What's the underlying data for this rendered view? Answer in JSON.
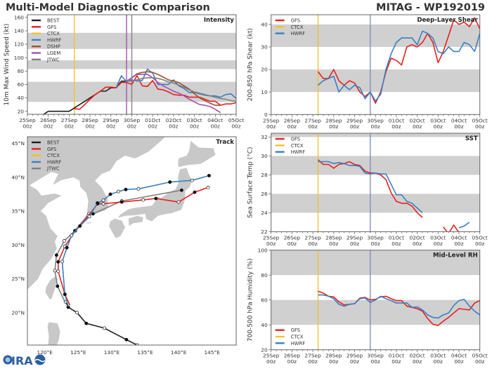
{
  "header": {
    "title": "Multi-Model Diagnostic Comparison",
    "storm": "MITAG - WP192019"
  },
  "logo": {
    "text": "CIRA"
  },
  "colors": {
    "BEST": "#1e1e1e",
    "GFS": "#e8201f",
    "CTCX": "#f2c12e",
    "HWRF": "#3a80c2",
    "DSHP": "#a0522d",
    "LGEM": "#a24fb4",
    "JTWC": "#7f7f7f",
    "MARKER": "#7e8fbf",
    "band": "#d0d0d0",
    "land": "#c8c8c8"
  },
  "chart_data": [
    {
      "id": "intensity",
      "type": "line",
      "title": "Intensity",
      "ylabel": "10m Max Wind Speed (kt)",
      "ylim": [
        15.5,
        164
      ],
      "y_ticks": [
        20,
        40,
        60,
        80,
        100,
        120,
        140,
        160
      ],
      "xlim": [
        "25Sep 00z",
        "05Oct 00z"
      ],
      "x_ticks": [
        "25Sep 00z",
        "26Sep 00z",
        "27Sep 00z",
        "28Sep 00z",
        "29Sep 00z",
        "30Sep 00z",
        "01Oct 00z",
        "02Oct 00z",
        "03Oct 00z",
        "04Oct 00z",
        "05Oct 00z"
      ],
      "bands": [
        [
          34,
          64
        ],
        [
          83,
          96
        ],
        [
          113,
          137
        ]
      ],
      "legend": [
        "BEST",
        "GFS",
        "CTCX",
        "HWRF",
        "DSHP",
        "LGEM",
        "JTWC"
      ],
      "legend_position": "top-left",
      "vlines": [
        {
          "model": "CTCX",
          "time": "27Sep 06z"
        },
        {
          "model": "LGEM",
          "time": "29Sep 18z"
        },
        {
          "model": "JTWC",
          "time": "30Sep 00z"
        }
      ],
      "series": [
        {
          "name": "BEST",
          "start": "25Sep 18z",
          "interval_hours": 6,
          "values": [
            15,
            20,
            20,
            20,
            20,
            20,
            25,
            30,
            35,
            40,
            45,
            50,
            50,
            55,
            55,
            65,
            65
          ]
        },
        {
          "name": "GFS",
          "start": "27Sep 06z",
          "interval_hours": 6,
          "values": [
            24,
            23,
            30,
            38,
            45,
            50,
            56,
            56,
            55,
            63,
            63,
            60,
            73,
            58,
            57,
            66,
            53,
            52,
            49,
            45,
            44,
            44,
            41,
            41,
            41,
            38,
            35,
            35,
            29,
            31,
            31,
            33
          ]
        },
        {
          "name": "HWRF",
          "start": "29Sep 06z",
          "interval_hours": 6,
          "values": [
            55,
            73,
            64,
            67,
            65,
            66,
            83,
            77,
            60,
            60,
            60,
            67,
            58,
            54,
            48,
            48,
            46,
            44,
            43,
            43,
            41,
            45,
            46,
            39
          ]
        },
        {
          "name": "DSHP",
          "start": "29Sep 18z",
          "interval_hours": 6,
          "values": [
            65,
            70,
            76,
            78,
            79,
            78,
            75,
            71,
            67,
            65,
            63,
            58,
            53,
            46,
            40,
            36,
            32,
            29,
            29
          ]
        },
        {
          "name": "LGEM",
          "start": "29Sep 18z",
          "interval_hours": 6,
          "values": [
            64,
            70,
            75,
            75,
            75,
            70,
            63,
            58,
            54,
            50,
            47,
            43,
            38,
            34,
            30,
            29,
            27,
            23,
            18
          ]
        },
        {
          "name": "JTWC",
          "start": "29Sep 18z",
          "interval_hours": 6,
          "values": [
            65,
            65,
            67,
            69,
            70,
            70,
            69,
            67,
            64,
            62,
            59,
            56,
            52,
            49,
            47,
            45,
            43,
            41,
            39,
            38,
            36,
            35
          ]
        }
      ]
    },
    {
      "id": "shear",
      "type": "line",
      "title": "Deep-Layer Shear",
      "ylabel": "200-850 hPa Shear (kt)",
      "ylim": [
        0,
        44.3
      ],
      "y_ticks": [
        0,
        10,
        20,
        30,
        40
      ],
      "xlim": [
        "25Sep 00z",
        "05Oct 00z"
      ],
      "x_ticks": [
        "25Sep 00z",
        "26Sep 00z",
        "27Sep 00z",
        "28Sep 00z",
        "29Sep 00z",
        "30Sep 00z",
        "01Oct 00z",
        "02Oct 00z",
        "03Oct 00z",
        "04Oct 00z",
        "05Oct 00z"
      ],
      "bands": [
        [
          10,
          20
        ],
        [
          30,
          40
        ]
      ],
      "legend": [
        "GFS",
        "CTCX",
        "HWRF"
      ],
      "legend_position": "top-left",
      "vlines": [
        {
          "model": "CTCX",
          "time": "27Sep 06z"
        },
        {
          "model": "MARKER",
          "time": "29Sep 18z"
        }
      ],
      "series": [
        {
          "name": "GFS",
          "start": "27Sep 06z",
          "interval_hours": 6,
          "values": [
            19,
            16,
            16,
            20,
            15,
            13,
            15,
            14,
            10,
            8,
            10,
            5,
            10,
            19,
            25,
            24,
            22,
            30,
            31,
            30,
            32,
            36,
            32,
            23,
            28,
            35,
            42,
            40,
            41,
            39,
            43,
            38
          ]
        },
        {
          "name": "HWRF",
          "start": "27Sep 06z",
          "interval_hours": 6,
          "values": [
            13,
            15,
            16,
            17,
            10,
            13,
            11,
            13,
            12,
            7,
            10,
            6,
            9,
            20,
            27,
            32,
            34,
            34,
            34,
            31,
            37,
            36,
            34,
            28,
            27,
            30,
            28,
            28,
            32,
            31,
            28,
            36
          ]
        }
      ]
    },
    {
      "id": "sst",
      "type": "line",
      "title": "SST",
      "ylabel": "Sea Surface Temp (°C)",
      "ylim": [
        22,
        32.4
      ],
      "y_ticks": [
        22,
        24,
        26,
        28,
        30,
        32
      ],
      "xlim": [
        "25Sep 00z",
        "05Oct 00z"
      ],
      "x_ticks": [
        "25Sep 00z",
        "26Sep 00z",
        "27Sep 00z",
        "28Sep 00z",
        "29Sep 00z",
        "30Sep 00z",
        "01Oct 00z",
        "02Oct 00z",
        "03Oct 00z",
        "04Oct 00z",
        "05Oct 00z"
      ],
      "bands": [
        [
          24,
          26
        ],
        [
          28,
          30
        ],
        [
          32,
          34
        ]
      ],
      "legend": [
        "GFS",
        "CTCX",
        "HWRF"
      ],
      "legend_position": "top-left",
      "vlines": [
        {
          "model": "CTCX",
          "time": "27Sep 06z"
        },
        {
          "model": "MARKER",
          "time": "29Sep 18z"
        }
      ],
      "series": [
        {
          "name": "GFS",
          "start": "27Sep 06z",
          "interval_hours": 6,
          "values": [
            29.6,
            29.1,
            29.1,
            28.7,
            29.1,
            29.2,
            29.4,
            29.1,
            29.0,
            28.4,
            28.2,
            28.2,
            28.0,
            27.5,
            26.1,
            25.2,
            25.0,
            25.0,
            24.7,
            24.0,
            23.5,
            null,
            null,
            null,
            22.5,
            21.8,
            22.7,
            21.9
          ]
        },
        {
          "name": "HWRF",
          "start": "27Sep 06z",
          "interval_hours": 6,
          "values": [
            29.4,
            29.4,
            29.4,
            29.2,
            29.3,
            29.2,
            29.0,
            29.0,
            28.9,
            28.2,
            28.1,
            28.2,
            28.1,
            28.1,
            27.0,
            25.9,
            25.9,
            25.2,
            25.0,
            24.5,
            24.0,
            null,
            null,
            null,
            null,
            null,
            null,
            22.4,
            22.6,
            23.0
          ]
        }
      ]
    },
    {
      "id": "rh",
      "type": "line",
      "title": "Mid-Level RH",
      "ylabel": "700-500 hPa Humidity (%)",
      "ylim": [
        20,
        100
      ],
      "y_ticks": [
        20,
        40,
        60,
        80,
        100
      ],
      "xlim": [
        "25Sep 00z",
        "05Oct 00z"
      ],
      "x_ticks": [
        "25Sep 00z",
        "26Sep 00z",
        "27Sep 00z",
        "28Sep 00z",
        "29Sep 00z",
        "30Sep 00z",
        "01Oct 00z",
        "02Oct 00z",
        "03Oct 00z",
        "04Oct 00z",
        "05Oct 00z"
      ],
      "bands": [
        [
          40,
          60
        ],
        [
          80,
          100
        ]
      ],
      "legend": [
        "GFS",
        "CTCX",
        "HWRF"
      ],
      "legend_position": "bottom-left",
      "vlines": [
        {
          "model": "CTCX",
          "time": "27Sep 06z"
        },
        {
          "model": "MARKER",
          "time": "29Sep 18z"
        }
      ],
      "series": [
        {
          "name": "GFS",
          "start": "27Sep 06z",
          "interval_hours": 6,
          "values": [
            67,
            65.5,
            63,
            62.5,
            58.5,
            56,
            56.5,
            57,
            61.5,
            62,
            60,
            60.5,
            62.5,
            63,
            61,
            59.5,
            59.5,
            55,
            54,
            53,
            51,
            45,
            40.5,
            39.5,
            43,
            46,
            49.5,
            53,
            52.5,
            52,
            57.5,
            59.5
          ]
        },
        {
          "name": "HWRF",
          "start": "27Sep 06z",
          "interval_hours": 6,
          "values": [
            64,
            64,
            63,
            61,
            56.5,
            55,
            56.5,
            57,
            61,
            61.5,
            58,
            60,
            63,
            61,
            59.5,
            57.5,
            57.5,
            57.5,
            54,
            54.5,
            52,
            48,
            46,
            45.5,
            48,
            49.5,
            55.5,
            59.5,
            60.5,
            55,
            51,
            48
          ]
        }
      ]
    },
    {
      "id": "track",
      "type": "map",
      "title": "Track",
      "lon_range": [
        117.4,
        148.6
      ],
      "lat_range": [
        15.2,
        46
      ],
      "lon_ticks": [
        "120°E",
        "125°E",
        "130°E",
        "135°E",
        "140°E",
        "145°E"
      ],
      "lat_ticks": [
        "20°N",
        "25°N",
        "30°N",
        "35°N",
        "40°N",
        "45°N"
      ],
      "legend": [
        "BEST",
        "GFS",
        "CTCX",
        "HWRF",
        "JTWC"
      ],
      "legend_position": "top-left",
      "series": [
        {
          "name": "BEST",
          "points": [
            [
              133.8,
              15.2
            ],
            [
              132.2,
              16.0
            ],
            [
              128.9,
              17.7
            ],
            [
              126.2,
              18.4
            ],
            [
              124.8,
              20.0
            ],
            [
              123.5,
              20.8
            ],
            [
              123.1,
              21.6
            ]
          ]
        },
        {
          "name": "JTWC",
          "points": [
            [
              123.0,
              21.6
            ],
            [
              121.9,
              23.9
            ],
            [
              121.5,
              26.2
            ],
            [
              121.75,
              28.5
            ],
            [
              122.9,
              30.6
            ],
            [
              124.5,
              32.1
            ],
            [
              126.6,
              34.6
            ],
            [
              127.2,
              34.6
            ],
            [
              131.5,
              36.5
            ],
            [
              140.45,
              38.1
            ]
          ]
        },
        {
          "name": "GFS",
          "points": [
            [
              123.75,
              21.1
            ],
            [
              123.0,
              22.7
            ],
            [
              122.0,
              26.1
            ],
            [
              122.0,
              27.5
            ],
            [
              123.0,
              29.8
            ],
            [
              124.55,
              32.1
            ],
            [
              126.5,
              34.3
            ],
            [
              127.9,
              36.1
            ],
            [
              128.75,
              36.1
            ],
            [
              131.5,
              36.35
            ],
            [
              134.7,
              36.66
            ],
            [
              136.6,
              36.87
            ],
            [
              140.0,
              36.35
            ],
            [
              142.4,
              37.8
            ],
            [
              144.4,
              38.5
            ]
          ]
        },
        {
          "name": "HWRF",
          "points": [
            [
              123.5,
              20.9
            ],
            [
              123.0,
              22.7
            ],
            [
              122.6,
              27.55
            ],
            [
              123.3,
              29.6
            ],
            [
              124.0,
              31.4
            ],
            [
              125.25,
              32.8
            ],
            [
              126.65,
              34.2
            ],
            [
              127.87,
              36.2
            ],
            [
              128.75,
              36.6
            ],
            [
              129.8,
              37.5
            ],
            [
              131.0,
              37.9
            ],
            [
              132.1,
              38.2
            ],
            [
              134.0,
              38.3
            ],
            [
              138.7,
              39.3
            ],
            [
              142.0,
              39.55
            ],
            [
              144.55,
              40.25
            ]
          ]
        }
      ]
    }
  ]
}
